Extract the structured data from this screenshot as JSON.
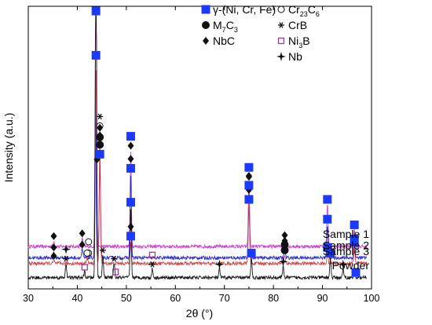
{
  "chart_data": {
    "type": "line",
    "xlabel": "2θ (°)",
    "ylabel": "Intensity (a.u.)",
    "xlim": [
      30,
      100
    ],
    "x_ticks": [
      "30",
      "40",
      "50",
      "60",
      "70",
      "80",
      "90",
      "100"
    ],
    "grid": false,
    "legend_position": "top-right",
    "legend": [
      {
        "symbol": "square",
        "label": "γ-(Ni, Cr, Fe)",
        "color": "#1a3bff"
      },
      {
        "symbol": "open-circle",
        "label": "Cr23C6",
        "label_main": "Cr",
        "label_sub1": "23",
        "label_mid": "C",
        "label_sub2": "6",
        "color": "#000000"
      },
      {
        "symbol": "filled-circle",
        "label": "M7C3",
        "label_main": "M",
        "label_sub1": "7",
        "label_mid": "C",
        "label_sub2": "3",
        "color": "#000000"
      },
      {
        "symbol": "asterisk",
        "label": "CrB",
        "color": "#000000"
      },
      {
        "symbol": "diamond",
        "label": "NbC",
        "color": "#000000"
      },
      {
        "symbol": "open-square",
        "label": "Ni3B",
        "label_main": "Ni",
        "label_sub1": "3",
        "label_mid": "B",
        "label_sub2": "",
        "color": "#9b3a9b"
      },
      {
        "symbol": "cross-star",
        "label": "Nb",
        "color": "#000000"
      }
    ],
    "series": [
      {
        "name": "Sample 1",
        "color": "#cc44cc",
        "baseline": 0.15,
        "peaks": [
          [
            35.2,
            0.02
          ],
          [
            41.0,
            0.03
          ],
          [
            43.8,
            1.0
          ],
          [
            50.9,
            0.34
          ],
          [
            75.0,
            0.23
          ],
          [
            91.0,
            0.15
          ],
          [
            96.5,
            0.06
          ]
        ]
      },
      {
        "name": "Sample 2",
        "color": "#2a2ad0",
        "baseline": 0.11,
        "peaks": [
          [
            35.2,
            0.02
          ],
          [
            41.0,
            0.03
          ],
          [
            43.7,
            0.55
          ],
          [
            44.6,
            0.35
          ],
          [
            50.9,
            0.3
          ],
          [
            75.0,
            0.19
          ],
          [
            82.3,
            0.03
          ],
          [
            91.0,
            0.12
          ],
          [
            96.5,
            0.05
          ]
        ]
      },
      {
        "name": "Sample 3",
        "color": "#d04545",
        "baseline": 0.09,
        "peaks": [
          [
            35.2,
            0.01
          ],
          [
            42.0,
            0.02
          ],
          [
            43.8,
            0.72
          ],
          [
            44.6,
            0.43
          ],
          [
            50.9,
            0.08
          ],
          [
            75.0,
            0.26
          ],
          [
            82.3,
            0.03
          ],
          [
            91.0,
            0.04
          ],
          [
            96.5,
            0.06
          ]
        ]
      },
      {
        "name": "Powder",
        "color": "#1a1a1a",
        "baseline": 0.04,
        "peaks": [
          [
            37.7,
            0.05
          ],
          [
            41.5,
            0.02
          ],
          [
            43.8,
            1.3
          ],
          [
            45.2,
            0.08
          ],
          [
            47.5,
            0.05
          ],
          [
            50.9,
            0.25
          ],
          [
            55.3,
            0.03
          ],
          [
            69.0,
            0.03
          ],
          [
            75.5,
            0.07
          ],
          [
            82.0,
            0.04
          ],
          [
            91.6,
            0.07
          ],
          [
            94.2,
            0.03
          ],
          [
            96.5,
            0.02
          ]
        ]
      }
    ],
    "markers": [
      {
        "series": 0,
        "symbol": "diamond",
        "x": [
          44.0,
          50.9,
          75.0,
          35.2,
          41.0
        ]
      },
      {
        "series": 0,
        "symbol": "square",
        "x": [
          43.8,
          50.9,
          75.0,
          91.0,
          96.5
        ]
      },
      {
        "series": 0,
        "symbol": "open-circle",
        "x": [
          42.3
        ]
      },
      {
        "series": 1,
        "symbol": "square",
        "x": [
          44.6,
          50.9,
          75.0,
          91.0,
          96.5
        ]
      },
      {
        "series": 1,
        "symbol": "filled-circle",
        "x": [
          44.6,
          82.3
        ]
      },
      {
        "series": 1,
        "symbol": "diamond",
        "x": [
          44.6,
          50.9,
          75.0,
          82.3,
          35.2,
          41.0
        ]
      },
      {
        "series": 1,
        "symbol": "open-circle",
        "x": [
          42.3,
          44.6
        ]
      },
      {
        "series": 1,
        "symbol": "asterisk",
        "x": [
          44.6
        ]
      },
      {
        "series": 2,
        "symbol": "square",
        "x": [
          43.8,
          50.9,
          75.0,
          91.0,
          96.5
        ]
      },
      {
        "series": 2,
        "symbol": "filled-circle",
        "x": [
          44.6,
          82.3
        ]
      },
      {
        "series": 2,
        "symbol": "diamond",
        "x": [
          44.6,
          50.9,
          75.0,
          82.3,
          35.2
        ]
      },
      {
        "series": 2,
        "symbol": "open-circle",
        "x": [
          42.0
        ]
      },
      {
        "series": 3,
        "symbol": "square",
        "x": [
          50.9,
          75.5,
          91.6,
          96.8
        ]
      },
      {
        "series": 3,
        "symbol": "asterisk",
        "x": [
          37.7,
          45.2,
          47.5,
          55.3
        ]
      },
      {
        "series": 3,
        "symbol": "open-square",
        "x": [
          41.5,
          47.8,
          55.3
        ]
      },
      {
        "series": 3,
        "symbol": "cross-star",
        "x": [
          37.7,
          69.0,
          82.0,
          94.2
        ]
      }
    ]
  }
}
